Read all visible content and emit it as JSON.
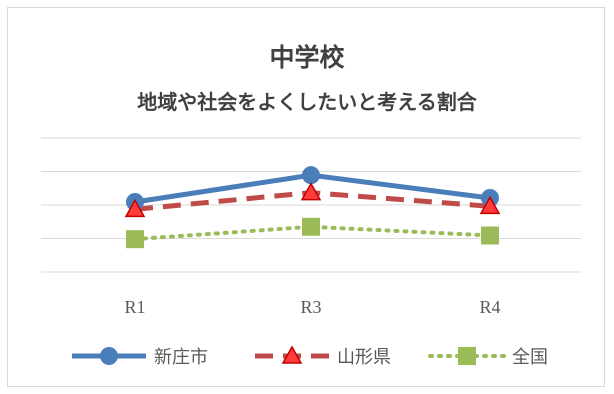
{
  "chart_data": {
    "type": "line",
    "title": "中学校",
    "subtitle": "地域や社会をよくしたいと考える割合",
    "categories": [
      "R1",
      "R3",
      "R4"
    ],
    "grid": true,
    "legend_position": "bottom",
    "series": [
      {
        "name": "新庄市",
        "values": [
          70.9,
          78.9,
          72.1
        ],
        "color": "#4a7ebb",
        "line_style": "solid",
        "marker": "circle"
      },
      {
        "name": "山形県",
        "values": [
          68.7,
          73.7,
          69.6
        ],
        "color": "#be4b48",
        "line_style": "dashed",
        "marker": "triangle"
      },
      {
        "name": "全国",
        "values": [
          59.8,
          63.5,
          60.9
        ],
        "color": "#9bbb59",
        "line_style": "dotted",
        "marker": "square"
      }
    ],
    "ylim": [
      50,
      90
    ]
  }
}
